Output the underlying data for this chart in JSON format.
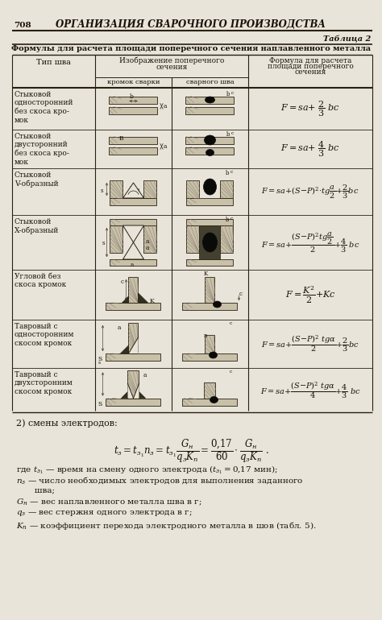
{
  "page_number": "708",
  "header_title": "ОРГАНИЗАЦИЯ СВАРОЧНОГО ПРОИЗВОДСТВА",
  "table_number": "Таблица 2",
  "table_title": "Формулы для расчета площади поперечного сечения наплавленного металла",
  "col_header_1": "Тип шва",
  "col_header_2a": "кромок сварки",
  "col_header_2b": "сварного шва",
  "col_header_3": "Формула для расчета\nплощади поперечного\nсечения",
  "bg_color": "#e8e4da",
  "text_color": "#1a1208",
  "line_color": "#2a2010"
}
